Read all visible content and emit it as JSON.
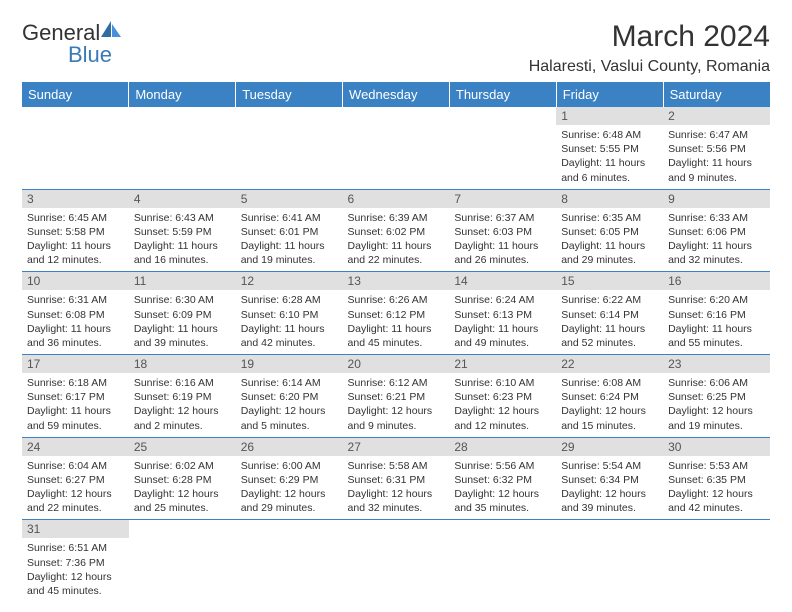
{
  "brand": {
    "part1": "General",
    "part2": "Blue"
  },
  "title": "March 2024",
  "location": "Halaresti, Vaslui County, Romania",
  "colors": {
    "header_bg": "#3a82c4",
    "header_fg": "#ffffff",
    "daynum_bg": "#e0e0e0",
    "text": "#333333",
    "rule": "#3a82c4"
  },
  "day_headers": [
    "Sunday",
    "Monday",
    "Tuesday",
    "Wednesday",
    "Thursday",
    "Friday",
    "Saturday"
  ],
  "weeks": [
    [
      null,
      null,
      null,
      null,
      null,
      {
        "n": "1",
        "sr": "6:48 AM",
        "ss": "5:55 PM",
        "dl": "11 hours and 6 minutes."
      },
      {
        "n": "2",
        "sr": "6:47 AM",
        "ss": "5:56 PM",
        "dl": "11 hours and 9 minutes."
      }
    ],
    [
      {
        "n": "3",
        "sr": "6:45 AM",
        "ss": "5:58 PM",
        "dl": "11 hours and 12 minutes."
      },
      {
        "n": "4",
        "sr": "6:43 AM",
        "ss": "5:59 PM",
        "dl": "11 hours and 16 minutes."
      },
      {
        "n": "5",
        "sr": "6:41 AM",
        "ss": "6:01 PM",
        "dl": "11 hours and 19 minutes."
      },
      {
        "n": "6",
        "sr": "6:39 AM",
        "ss": "6:02 PM",
        "dl": "11 hours and 22 minutes."
      },
      {
        "n": "7",
        "sr": "6:37 AM",
        "ss": "6:03 PM",
        "dl": "11 hours and 26 minutes."
      },
      {
        "n": "8",
        "sr": "6:35 AM",
        "ss": "6:05 PM",
        "dl": "11 hours and 29 minutes."
      },
      {
        "n": "9",
        "sr": "6:33 AM",
        "ss": "6:06 PM",
        "dl": "11 hours and 32 minutes."
      }
    ],
    [
      {
        "n": "10",
        "sr": "6:31 AM",
        "ss": "6:08 PM",
        "dl": "11 hours and 36 minutes."
      },
      {
        "n": "11",
        "sr": "6:30 AM",
        "ss": "6:09 PM",
        "dl": "11 hours and 39 minutes."
      },
      {
        "n": "12",
        "sr": "6:28 AM",
        "ss": "6:10 PM",
        "dl": "11 hours and 42 minutes."
      },
      {
        "n": "13",
        "sr": "6:26 AM",
        "ss": "6:12 PM",
        "dl": "11 hours and 45 minutes."
      },
      {
        "n": "14",
        "sr": "6:24 AM",
        "ss": "6:13 PM",
        "dl": "11 hours and 49 minutes."
      },
      {
        "n": "15",
        "sr": "6:22 AM",
        "ss": "6:14 PM",
        "dl": "11 hours and 52 minutes."
      },
      {
        "n": "16",
        "sr": "6:20 AM",
        "ss": "6:16 PM",
        "dl": "11 hours and 55 minutes."
      }
    ],
    [
      {
        "n": "17",
        "sr": "6:18 AM",
        "ss": "6:17 PM",
        "dl": "11 hours and 59 minutes."
      },
      {
        "n": "18",
        "sr": "6:16 AM",
        "ss": "6:19 PM",
        "dl": "12 hours and 2 minutes."
      },
      {
        "n": "19",
        "sr": "6:14 AM",
        "ss": "6:20 PM",
        "dl": "12 hours and 5 minutes."
      },
      {
        "n": "20",
        "sr": "6:12 AM",
        "ss": "6:21 PM",
        "dl": "12 hours and 9 minutes."
      },
      {
        "n": "21",
        "sr": "6:10 AM",
        "ss": "6:23 PM",
        "dl": "12 hours and 12 minutes."
      },
      {
        "n": "22",
        "sr": "6:08 AM",
        "ss": "6:24 PM",
        "dl": "12 hours and 15 minutes."
      },
      {
        "n": "23",
        "sr": "6:06 AM",
        "ss": "6:25 PM",
        "dl": "12 hours and 19 minutes."
      }
    ],
    [
      {
        "n": "24",
        "sr": "6:04 AM",
        "ss": "6:27 PM",
        "dl": "12 hours and 22 minutes."
      },
      {
        "n": "25",
        "sr": "6:02 AM",
        "ss": "6:28 PM",
        "dl": "12 hours and 25 minutes."
      },
      {
        "n": "26",
        "sr": "6:00 AM",
        "ss": "6:29 PM",
        "dl": "12 hours and 29 minutes."
      },
      {
        "n": "27",
        "sr": "5:58 AM",
        "ss": "6:31 PM",
        "dl": "12 hours and 32 minutes."
      },
      {
        "n": "28",
        "sr": "5:56 AM",
        "ss": "6:32 PM",
        "dl": "12 hours and 35 minutes."
      },
      {
        "n": "29",
        "sr": "5:54 AM",
        "ss": "6:34 PM",
        "dl": "12 hours and 39 minutes."
      },
      {
        "n": "30",
        "sr": "5:53 AM",
        "ss": "6:35 PM",
        "dl": "12 hours and 42 minutes."
      }
    ],
    [
      {
        "n": "31",
        "sr": "6:51 AM",
        "ss": "7:36 PM",
        "dl": "12 hours and 45 minutes."
      },
      null,
      null,
      null,
      null,
      null,
      null
    ]
  ],
  "labels": {
    "sunrise": "Sunrise:",
    "sunset": "Sunset:",
    "daylight": "Daylight:"
  }
}
